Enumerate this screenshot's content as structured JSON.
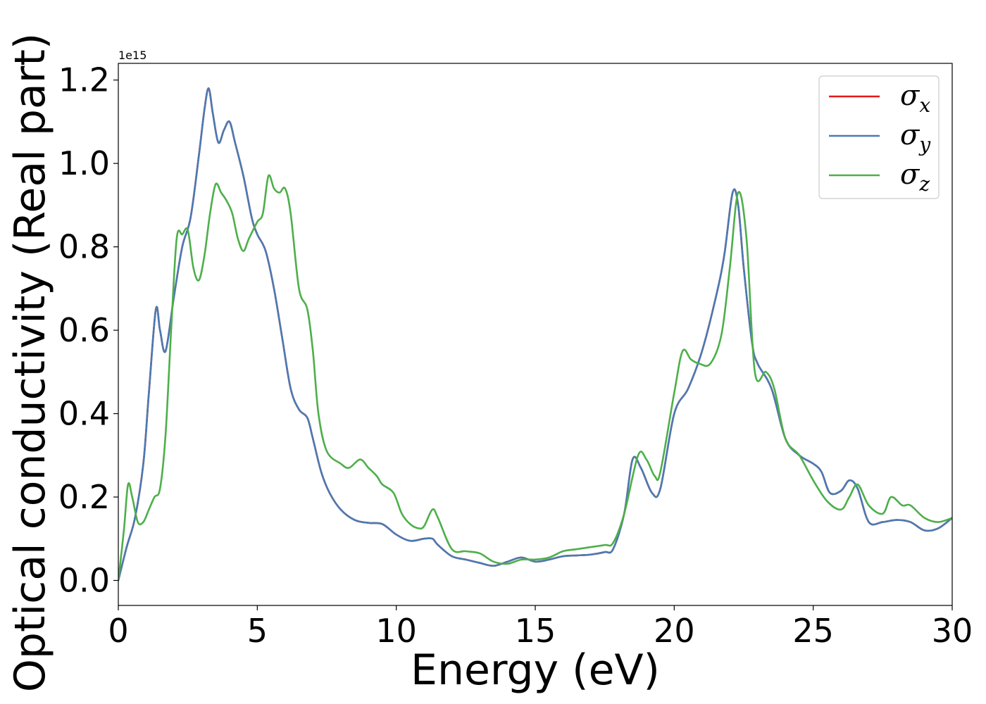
{
  "chart_data": {
    "type": "line",
    "xlabel": "Energy (eV)",
    "ylabel": "Optical conductivity (Real part)",
    "y_offset_label": "1e15",
    "xlim": [
      0,
      30
    ],
    "ylim": [
      -0.06,
      1.24
    ],
    "x_ticks": [
      "0",
      "5",
      "10",
      "15",
      "20",
      "25",
      "30"
    ],
    "y_ticks": [
      "0.0",
      "0.2",
      "0.4",
      "0.6",
      "0.8",
      "1.0",
      "1.2"
    ],
    "grid": false,
    "legend_position": "top-right",
    "series": [
      {
        "name": "σx",
        "symbol": "σ",
        "subscript": "x",
        "color": "#e41a1c",
        "x": [
          0,
          0.3,
          0.6,
          0.9,
          1.1,
          1.35,
          1.5,
          1.7,
          2.0,
          2.3,
          2.6,
          2.9,
          3.1,
          3.25,
          3.4,
          3.6,
          3.8,
          4.0,
          4.2,
          4.5,
          4.8,
          5.0,
          5.3,
          5.6,
          5.9,
          6.2,
          6.5,
          6.8,
          7.0,
          7.3,
          7.6,
          8.0,
          8.5,
          9.0,
          9.5,
          10.0,
          10.5,
          11.0,
          11.3,
          11.5,
          12.0,
          12.5,
          13.0,
          13.5,
          14.0,
          14.5,
          15.0,
          15.5,
          16.0,
          16.5,
          17.0,
          17.5,
          17.8,
          18.2,
          18.5,
          18.8,
          19.2,
          19.5,
          20.0,
          20.5,
          21.0,
          21.5,
          21.8,
          22.1,
          22.3,
          22.5,
          22.8,
          23.0,
          23.5,
          24.0,
          24.5,
          25.0,
          25.3,
          25.6,
          26.0,
          26.3,
          26.6,
          27.0,
          27.5,
          28.0,
          28.5,
          29.0,
          29.5,
          30.0
        ],
        "values": [
          0.0,
          0.08,
          0.15,
          0.28,
          0.45,
          0.65,
          0.6,
          0.55,
          0.68,
          0.8,
          0.87,
          1.02,
          1.13,
          1.18,
          1.12,
          1.05,
          1.08,
          1.1,
          1.05,
          0.97,
          0.87,
          0.83,
          0.79,
          0.7,
          0.58,
          0.46,
          0.41,
          0.39,
          0.34,
          0.26,
          0.21,
          0.17,
          0.145,
          0.138,
          0.135,
          0.11,
          0.095,
          0.1,
          0.1,
          0.085,
          0.058,
          0.05,
          0.042,
          0.035,
          0.045,
          0.055,
          0.045,
          0.05,
          0.058,
          0.06,
          0.062,
          0.068,
          0.075,
          0.16,
          0.29,
          0.27,
          0.21,
          0.22,
          0.4,
          0.46,
          0.55,
          0.68,
          0.78,
          0.93,
          0.9,
          0.75,
          0.57,
          0.52,
          0.46,
          0.34,
          0.3,
          0.28,
          0.26,
          0.21,
          0.215,
          0.24,
          0.22,
          0.14,
          0.14,
          0.145,
          0.14,
          0.12,
          0.125,
          0.15
        ]
      },
      {
        "name": "σy",
        "symbol": "σ",
        "subscript": "y",
        "color": "#4a7ab3",
        "x": [
          0,
          0.3,
          0.6,
          0.9,
          1.1,
          1.35,
          1.5,
          1.7,
          2.0,
          2.3,
          2.6,
          2.9,
          3.1,
          3.25,
          3.4,
          3.6,
          3.8,
          4.0,
          4.2,
          4.5,
          4.8,
          5.0,
          5.3,
          5.6,
          5.9,
          6.2,
          6.5,
          6.8,
          7.0,
          7.3,
          7.6,
          8.0,
          8.5,
          9.0,
          9.5,
          10.0,
          10.5,
          11.0,
          11.3,
          11.5,
          12.0,
          12.5,
          13.0,
          13.5,
          14.0,
          14.5,
          15.0,
          15.5,
          16.0,
          16.5,
          17.0,
          17.5,
          17.8,
          18.2,
          18.5,
          18.8,
          19.2,
          19.5,
          20.0,
          20.5,
          21.0,
          21.5,
          21.8,
          22.1,
          22.3,
          22.5,
          22.8,
          23.0,
          23.5,
          24.0,
          24.5,
          25.0,
          25.3,
          25.6,
          26.0,
          26.3,
          26.6,
          27.0,
          27.5,
          28.0,
          28.5,
          29.0,
          29.5,
          30.0
        ],
        "values": [
          0.0,
          0.08,
          0.15,
          0.28,
          0.45,
          0.65,
          0.6,
          0.55,
          0.68,
          0.8,
          0.87,
          1.02,
          1.13,
          1.18,
          1.12,
          1.05,
          1.08,
          1.1,
          1.05,
          0.97,
          0.87,
          0.83,
          0.79,
          0.7,
          0.58,
          0.46,
          0.41,
          0.39,
          0.34,
          0.26,
          0.21,
          0.17,
          0.145,
          0.138,
          0.135,
          0.11,
          0.095,
          0.1,
          0.1,
          0.085,
          0.058,
          0.05,
          0.042,
          0.035,
          0.045,
          0.055,
          0.045,
          0.05,
          0.058,
          0.06,
          0.062,
          0.068,
          0.075,
          0.16,
          0.29,
          0.27,
          0.21,
          0.22,
          0.4,
          0.46,
          0.55,
          0.68,
          0.78,
          0.93,
          0.9,
          0.75,
          0.57,
          0.52,
          0.46,
          0.34,
          0.3,
          0.28,
          0.26,
          0.21,
          0.215,
          0.24,
          0.22,
          0.14,
          0.14,
          0.145,
          0.14,
          0.12,
          0.125,
          0.15
        ]
      },
      {
        "name": "σz",
        "symbol": "σ",
        "subscript": "z",
        "color": "#4daf4a",
        "x": [
          0,
          0.2,
          0.35,
          0.5,
          0.7,
          0.9,
          1.1,
          1.3,
          1.5,
          1.7,
          1.9,
          2.1,
          2.3,
          2.5,
          2.7,
          2.9,
          3.1,
          3.3,
          3.5,
          3.7,
          3.9,
          4.1,
          4.3,
          4.5,
          4.7,
          5.0,
          5.2,
          5.4,
          5.6,
          5.8,
          6.0,
          6.2,
          6.5,
          6.8,
          7.0,
          7.2,
          7.5,
          8.0,
          8.3,
          8.7,
          9.0,
          9.3,
          9.5,
          9.9,
          10.2,
          10.5,
          10.8,
          11.0,
          11.3,
          11.5,
          12.0,
          12.5,
          13.0,
          13.5,
          14.0,
          14.5,
          15.0,
          15.5,
          16.0,
          16.5,
          17.0,
          17.5,
          17.8,
          18.2,
          18.7,
          19.0,
          19.3,
          19.5,
          20.0,
          20.3,
          20.6,
          20.9,
          21.3,
          21.7,
          22.0,
          22.3,
          22.6,
          22.9,
          23.3,
          23.6,
          24.0,
          24.5,
          25.0,
          25.5,
          26.0,
          26.3,
          26.6,
          27.0,
          27.5,
          27.8,
          28.2,
          28.5,
          29.0,
          29.5,
          30.0
        ],
        "values": [
          0.0,
          0.12,
          0.23,
          0.2,
          0.14,
          0.14,
          0.17,
          0.2,
          0.22,
          0.35,
          0.6,
          0.82,
          0.83,
          0.84,
          0.75,
          0.72,
          0.78,
          0.88,
          0.95,
          0.93,
          0.91,
          0.88,
          0.82,
          0.79,
          0.82,
          0.86,
          0.88,
          0.97,
          0.94,
          0.93,
          0.94,
          0.88,
          0.7,
          0.65,
          0.55,
          0.4,
          0.31,
          0.28,
          0.27,
          0.29,
          0.27,
          0.25,
          0.23,
          0.21,
          0.16,
          0.135,
          0.125,
          0.13,
          0.17,
          0.15,
          0.075,
          0.07,
          0.065,
          0.045,
          0.04,
          0.05,
          0.05,
          0.055,
          0.07,
          0.075,
          0.08,
          0.085,
          0.09,
          0.16,
          0.3,
          0.29,
          0.25,
          0.26,
          0.45,
          0.55,
          0.53,
          0.52,
          0.52,
          0.59,
          0.75,
          0.93,
          0.82,
          0.5,
          0.5,
          0.46,
          0.34,
          0.3,
          0.24,
          0.19,
          0.17,
          0.2,
          0.23,
          0.18,
          0.16,
          0.2,
          0.18,
          0.18,
          0.15,
          0.14,
          0.15
        ]
      }
    ]
  }
}
